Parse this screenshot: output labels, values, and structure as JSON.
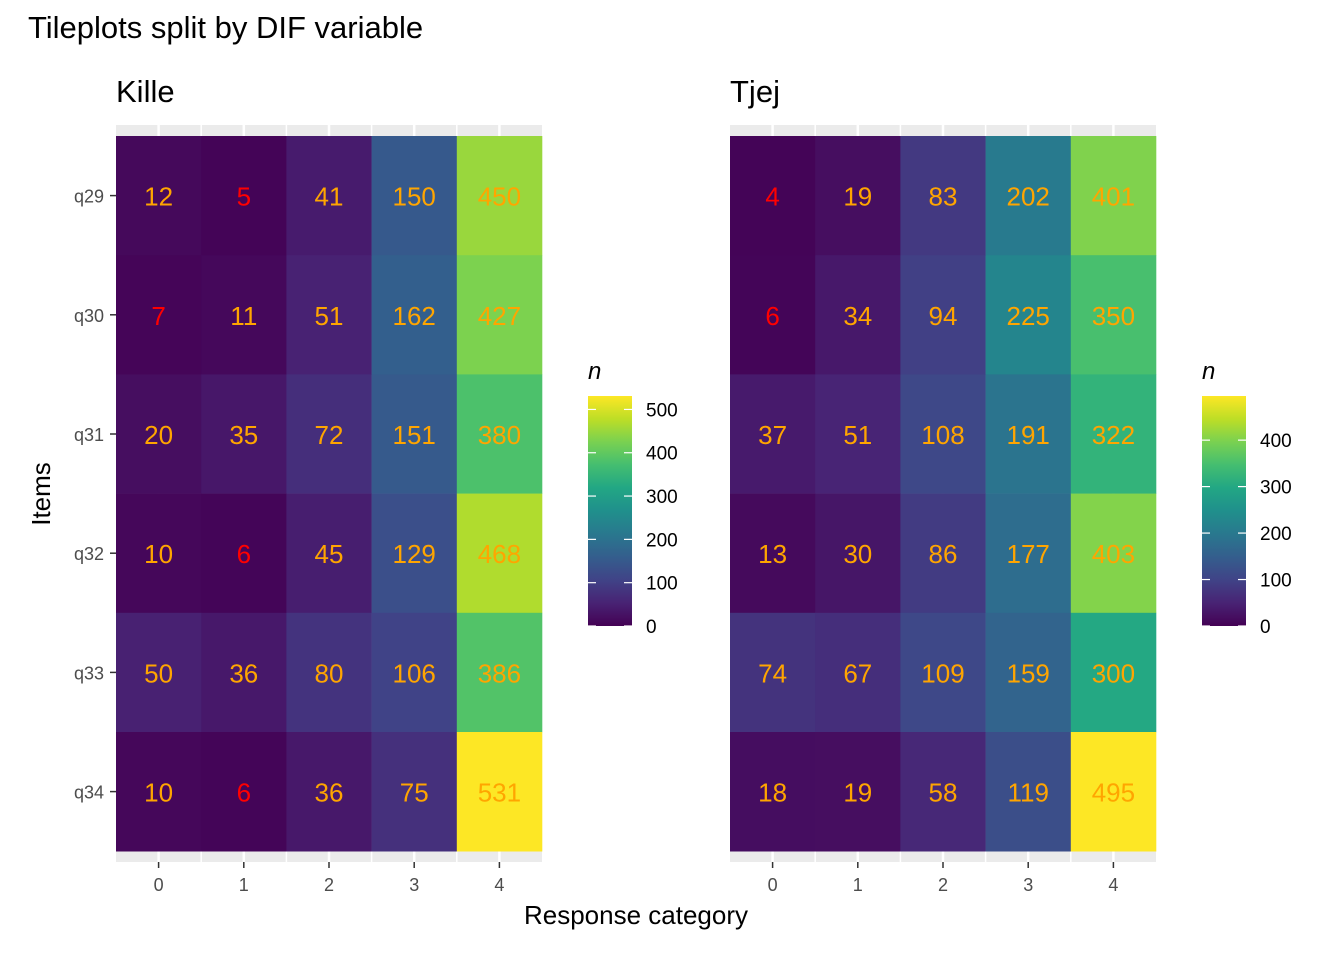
{
  "chart_data": {
    "type": "heatmap",
    "title": "Tileplots split by DIF variable",
    "xlabel": "Response category",
    "ylabel": "Items",
    "x_categories": [
      "0",
      "1",
      "2",
      "3",
      "4"
    ],
    "y_categories": [
      "q29",
      "q30",
      "q31",
      "q32",
      "q33",
      "q34"
    ],
    "colormap": "viridis",
    "low_count_color": "#ff0000",
    "label_color": "#ffa500",
    "low_count_threshold": 10,
    "panels": [
      {
        "name": "Kille",
        "values": [
          [
            12,
            5,
            41,
            150,
            450
          ],
          [
            7,
            11,
            51,
            162,
            427
          ],
          [
            20,
            35,
            72,
            151,
            380
          ],
          [
            10,
            6,
            45,
            129,
            468
          ],
          [
            50,
            36,
            80,
            106,
            386
          ],
          [
            10,
            6,
            36,
            75,
            531
          ]
        ],
        "legend": {
          "title": "n",
          "range": [
            0,
            531
          ],
          "ticks": [
            0,
            100,
            200,
            300,
            400,
            500
          ]
        }
      },
      {
        "name": "Tjej",
        "values": [
          [
            4,
            19,
            83,
            202,
            401
          ],
          [
            6,
            34,
            94,
            225,
            350
          ],
          [
            37,
            51,
            108,
            191,
            322
          ],
          [
            13,
            30,
            86,
            177,
            403
          ],
          [
            74,
            67,
            109,
            159,
            300
          ],
          [
            18,
            19,
            58,
            119,
            495
          ]
        ],
        "legend": {
          "title": "n",
          "range": [
            0,
            495
          ],
          "ticks": [
            0,
            100,
            200,
            300,
            400
          ]
        }
      }
    ]
  }
}
